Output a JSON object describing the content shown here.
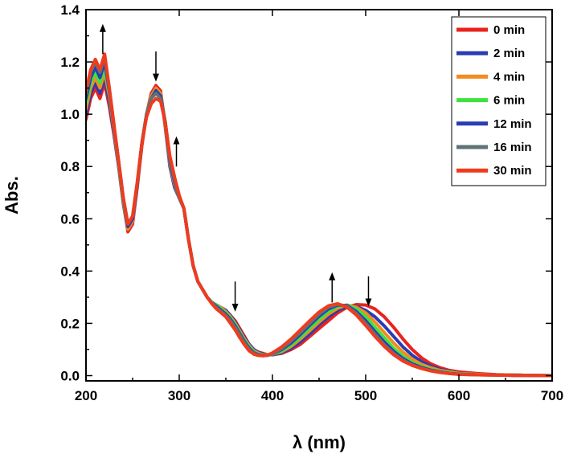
{
  "chart_data": {
    "type": "line",
    "xlabel": "λ (nm)",
    "ylabel": "Abs.",
    "xlim": [
      200,
      700
    ],
    "ylim": [
      -0.02,
      1.4
    ],
    "xticks": [
      200,
      300,
      400,
      500,
      600,
      700
    ],
    "yticks": [
      0.0,
      0.2,
      0.4,
      0.6,
      0.8,
      1.0,
      1.2,
      1.4
    ],
    "xtick_labels": [
      "200",
      "300",
      "400",
      "500",
      "600",
      "700"
    ],
    "ytick_labels": [
      "0.0",
      "0.2",
      "0.4",
      "0.6",
      "0.8",
      "1.0",
      "1.2",
      "1.4"
    ],
    "grid": false,
    "legend_position": "top-right",
    "series": [
      {
        "name": "0 min",
        "color": "#e8231e",
        "x": [
          200,
          205,
          210,
          215,
          220,
          225,
          230,
          235,
          240,
          245,
          250,
          255,
          260,
          265,
          270,
          275,
          280,
          285,
          290,
          295,
          300,
          305,
          310,
          315,
          320,
          325,
          330,
          335,
          340,
          345,
          350,
          355,
          360,
          365,
          370,
          375,
          380,
          385,
          390,
          395,
          400,
          410,
          420,
          430,
          440,
          450,
          460,
          470,
          480,
          490,
          500,
          510,
          520,
          530,
          540,
          550,
          560,
          570,
          580,
          590,
          600,
          620,
          640,
          660,
          680,
          700
        ],
        "y": [
          0.98,
          1.06,
          1.1,
          1.06,
          1.12,
          1.03,
          0.92,
          0.8,
          0.66,
          0.55,
          0.58,
          0.72,
          0.88,
          1.0,
          1.08,
          1.11,
          1.09,
          0.95,
          0.8,
          0.72,
          0.68,
          0.64,
          0.52,
          0.42,
          0.36,
          0.33,
          0.3,
          0.28,
          0.27,
          0.26,
          0.25,
          0.23,
          0.21,
          0.18,
          0.15,
          0.12,
          0.1,
          0.09,
          0.085,
          0.08,
          0.08,
          0.085,
          0.1,
          0.12,
          0.15,
          0.18,
          0.21,
          0.24,
          0.262,
          0.272,
          0.27,
          0.255,
          0.225,
          0.185,
          0.14,
          0.1,
          0.068,
          0.045,
          0.03,
          0.02,
          0.014,
          0.008,
          0.004,
          0.002,
          0.001,
          0.0
        ]
      },
      {
        "name": "2 min",
        "color": "#2a3cb5",
        "x": [
          200,
          205,
          210,
          215,
          220,
          225,
          230,
          235,
          240,
          245,
          250,
          255,
          260,
          265,
          270,
          275,
          280,
          285,
          290,
          295,
          300,
          305,
          310,
          315,
          320,
          325,
          330,
          335,
          340,
          345,
          350,
          355,
          360,
          365,
          370,
          375,
          380,
          385,
          390,
          395,
          400,
          410,
          420,
          430,
          440,
          450,
          460,
          470,
          480,
          490,
          500,
          510,
          520,
          530,
          540,
          550,
          560,
          570,
          580,
          590,
          600,
          620,
          640,
          660,
          680,
          700
        ],
        "y": [
          1.0,
          1.08,
          1.12,
          1.08,
          1.14,
          1.05,
          0.93,
          0.8,
          0.66,
          0.56,
          0.59,
          0.73,
          0.89,
          1.0,
          1.07,
          1.1,
          1.08,
          0.96,
          0.8,
          0.72,
          0.68,
          0.64,
          0.52,
          0.42,
          0.36,
          0.33,
          0.3,
          0.28,
          0.27,
          0.26,
          0.25,
          0.23,
          0.205,
          0.175,
          0.145,
          0.12,
          0.1,
          0.088,
          0.082,
          0.08,
          0.08,
          0.088,
          0.105,
          0.13,
          0.16,
          0.195,
          0.225,
          0.25,
          0.265,
          0.265,
          0.25,
          0.225,
          0.19,
          0.15,
          0.11,
          0.078,
          0.053,
          0.036,
          0.024,
          0.016,
          0.01,
          0.005,
          0.003,
          0.002,
          0.001,
          0.0
        ]
      },
      {
        "name": "4 min",
        "color": "#f28c1e",
        "x": [
          200,
          205,
          210,
          215,
          220,
          225,
          230,
          235,
          240,
          245,
          250,
          255,
          260,
          265,
          270,
          275,
          280,
          285,
          290,
          295,
          300,
          305,
          310,
          315,
          320,
          325,
          330,
          335,
          340,
          345,
          350,
          355,
          360,
          365,
          370,
          375,
          380,
          385,
          390,
          395,
          400,
          410,
          420,
          430,
          440,
          450,
          460,
          470,
          480,
          490,
          500,
          510,
          520,
          530,
          540,
          550,
          560,
          570,
          580,
          590,
          600,
          620,
          640,
          660,
          680,
          700
        ],
        "y": [
          1.02,
          1.1,
          1.14,
          1.1,
          1.16,
          1.07,
          0.94,
          0.81,
          0.67,
          0.56,
          0.59,
          0.73,
          0.89,
          1.0,
          1.07,
          1.1,
          1.08,
          0.96,
          0.81,
          0.73,
          0.68,
          0.64,
          0.52,
          0.42,
          0.36,
          0.33,
          0.3,
          0.28,
          0.27,
          0.26,
          0.245,
          0.225,
          0.2,
          0.17,
          0.14,
          0.115,
          0.095,
          0.085,
          0.08,
          0.08,
          0.082,
          0.092,
          0.112,
          0.14,
          0.172,
          0.205,
          0.235,
          0.258,
          0.27,
          0.262,
          0.24,
          0.205,
          0.165,
          0.125,
          0.09,
          0.063,
          0.043,
          0.03,
          0.02,
          0.014,
          0.009,
          0.005,
          0.003,
          0.002,
          0.001,
          0.0
        ]
      },
      {
        "name": "6 min",
        "color": "#3ee23e",
        "x": [
          200,
          205,
          210,
          215,
          220,
          225,
          230,
          235,
          240,
          245,
          250,
          255,
          260,
          265,
          270,
          275,
          280,
          285,
          290,
          295,
          300,
          305,
          310,
          315,
          320,
          325,
          330,
          335,
          340,
          345,
          350,
          355,
          360,
          365,
          370,
          375,
          380,
          385,
          390,
          395,
          400,
          410,
          420,
          430,
          440,
          450,
          460,
          470,
          480,
          490,
          500,
          510,
          520,
          530,
          540,
          550,
          560,
          570,
          580,
          590,
          600,
          620,
          640,
          660,
          680,
          700
        ],
        "y": [
          1.04,
          1.12,
          1.16,
          1.12,
          1.18,
          1.08,
          0.95,
          0.81,
          0.67,
          0.57,
          0.6,
          0.73,
          0.89,
          1.0,
          1.06,
          1.09,
          1.07,
          0.97,
          0.82,
          0.74,
          0.68,
          0.64,
          0.52,
          0.42,
          0.36,
          0.33,
          0.3,
          0.28,
          0.27,
          0.255,
          0.24,
          0.22,
          0.195,
          0.165,
          0.135,
          0.11,
          0.092,
          0.082,
          0.078,
          0.078,
          0.082,
          0.095,
          0.118,
          0.148,
          0.182,
          0.215,
          0.245,
          0.265,
          0.27,
          0.255,
          0.225,
          0.185,
          0.145,
          0.105,
          0.074,
          0.051,
          0.035,
          0.024,
          0.016,
          0.011,
          0.007,
          0.004,
          0.002,
          0.002,
          0.001,
          0.0
        ]
      },
      {
        "name": "12 min",
        "color": "#2a3cb5",
        "x": [
          200,
          205,
          210,
          215,
          220,
          225,
          230,
          235,
          240,
          245,
          250,
          255,
          260,
          265,
          270,
          275,
          280,
          285,
          290,
          295,
          300,
          305,
          310,
          315,
          320,
          325,
          330,
          335,
          340,
          345,
          350,
          355,
          360,
          365,
          370,
          375,
          380,
          385,
          390,
          395,
          400,
          410,
          420,
          430,
          440,
          450,
          460,
          470,
          480,
          490,
          500,
          510,
          520,
          530,
          540,
          550,
          560,
          570,
          580,
          590,
          600,
          620,
          640,
          660,
          680,
          700
        ],
        "y": [
          1.06,
          1.14,
          1.18,
          1.14,
          1.2,
          1.09,
          0.95,
          0.82,
          0.68,
          0.57,
          0.6,
          0.73,
          0.89,
          1.0,
          1.06,
          1.09,
          1.07,
          0.97,
          0.82,
          0.74,
          0.68,
          0.64,
          0.52,
          0.42,
          0.36,
          0.33,
          0.3,
          0.28,
          0.265,
          0.25,
          0.235,
          0.215,
          0.19,
          0.16,
          0.13,
          0.105,
          0.088,
          0.08,
          0.077,
          0.078,
          0.083,
          0.1,
          0.125,
          0.158,
          0.193,
          0.227,
          0.255,
          0.27,
          0.268,
          0.245,
          0.21,
          0.168,
          0.128,
          0.093,
          0.065,
          0.045,
          0.031,
          0.021,
          0.014,
          0.009,
          0.006,
          0.003,
          0.002,
          0.001,
          0.001,
          0.0
        ]
      },
      {
        "name": "16 min",
        "color": "#5e7475",
        "x": [
          200,
          205,
          210,
          215,
          220,
          225,
          230,
          235,
          240,
          245,
          250,
          255,
          260,
          265,
          270,
          275,
          280,
          285,
          290,
          295,
          300,
          305,
          310,
          315,
          320,
          325,
          330,
          335,
          340,
          345,
          350,
          355,
          360,
          365,
          370,
          375,
          380,
          385,
          390,
          395,
          400,
          410,
          420,
          430,
          440,
          450,
          460,
          470,
          480,
          490,
          500,
          510,
          520,
          530,
          540,
          550,
          560,
          570,
          580,
          590,
          600,
          620,
          640,
          660,
          680,
          700
        ],
        "y": [
          1.08,
          1.16,
          1.2,
          1.16,
          1.22,
          1.1,
          0.96,
          0.82,
          0.68,
          0.58,
          0.61,
          0.74,
          0.89,
          1.0,
          1.06,
          1.08,
          1.06,
          0.97,
          0.83,
          0.75,
          0.68,
          0.64,
          0.52,
          0.42,
          0.36,
          0.33,
          0.3,
          0.28,
          0.26,
          0.245,
          0.23,
          0.21,
          0.185,
          0.155,
          0.125,
          0.1,
          0.085,
          0.078,
          0.076,
          0.078,
          0.084,
          0.104,
          0.132,
          0.165,
          0.2,
          0.235,
          0.262,
          0.273,
          0.265,
          0.238,
          0.2,
          0.158,
          0.118,
          0.085,
          0.059,
          0.041,
          0.028,
          0.019,
          0.013,
          0.008,
          0.005,
          0.003,
          0.002,
          0.001,
          0.001,
          0.0
        ]
      },
      {
        "name": "30 min",
        "color": "#f03b1e",
        "x": [
          200,
          205,
          210,
          215,
          220,
          225,
          230,
          235,
          240,
          245,
          250,
          255,
          260,
          265,
          270,
          275,
          280,
          285,
          290,
          295,
          300,
          305,
          310,
          315,
          320,
          325,
          330,
          335,
          340,
          345,
          350,
          355,
          360,
          365,
          370,
          375,
          380,
          385,
          390,
          395,
          400,
          410,
          420,
          430,
          440,
          450,
          460,
          470,
          480,
          490,
          500,
          510,
          520,
          530,
          540,
          550,
          560,
          570,
          580,
          590,
          600,
          620,
          640,
          660,
          680,
          700
        ],
        "y": [
          1.09,
          1.17,
          1.21,
          1.17,
          1.23,
          1.1,
          0.96,
          0.82,
          0.68,
          0.58,
          0.61,
          0.74,
          0.89,
          0.99,
          1.04,
          1.06,
          1.05,
          0.97,
          0.84,
          0.76,
          0.69,
          0.64,
          0.52,
          0.42,
          0.36,
          0.33,
          0.3,
          0.275,
          0.255,
          0.24,
          0.225,
          0.2,
          0.175,
          0.145,
          0.118,
          0.095,
          0.082,
          0.077,
          0.076,
          0.079,
          0.087,
          0.11,
          0.14,
          0.175,
          0.21,
          0.243,
          0.267,
          0.275,
          0.262,
          0.232,
          0.192,
          0.15,
          0.112,
          0.08,
          0.056,
          0.039,
          0.027,
          0.018,
          0.012,
          0.008,
          0.005,
          0.003,
          0.002,
          0.001,
          0.001,
          0.0
        ]
      }
    ],
    "annotations": [
      {
        "type": "arrow",
        "direction": "up",
        "x": 218,
        "y_from": 1.23,
        "y_to": 1.33
      },
      {
        "type": "arrow",
        "direction": "down",
        "x": 275,
        "y_from": 1.24,
        "y_to": 1.14
      },
      {
        "type": "arrow",
        "direction": "up",
        "x": 297,
        "y_from": 0.8,
        "y_to": 0.9
      },
      {
        "type": "arrow",
        "direction": "down",
        "x": 360,
        "y_from": 0.36,
        "y_to": 0.26
      },
      {
        "type": "arrow",
        "direction": "up",
        "x": 464,
        "y_from": 0.28,
        "y_to": 0.38
      },
      {
        "type": "arrow",
        "direction": "down",
        "x": 503,
        "y_from": 0.38,
        "y_to": 0.28
      }
    ]
  }
}
